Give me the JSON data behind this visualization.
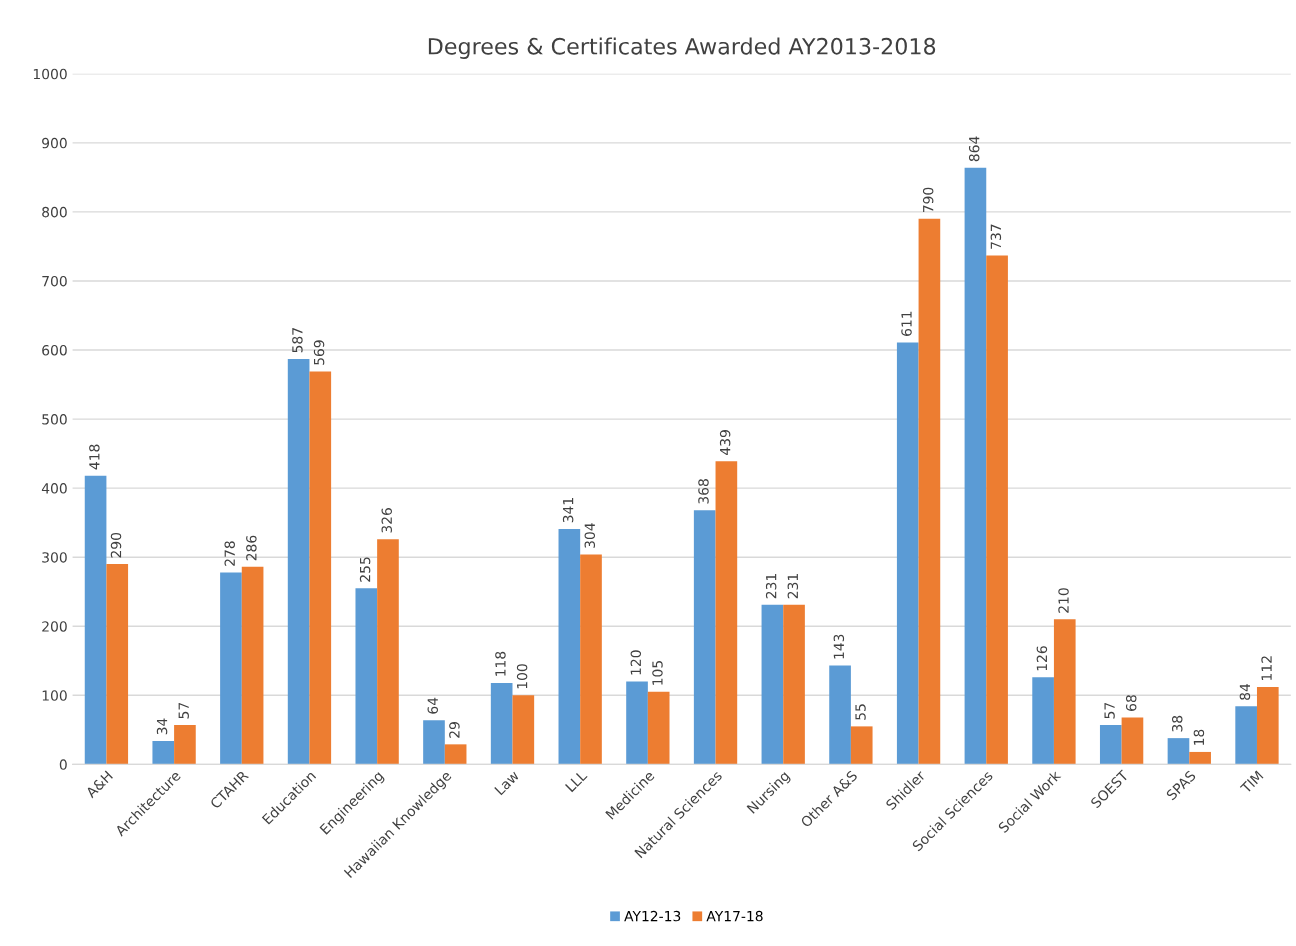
{
  "chart_data": {
    "type": "bar",
    "title": "Degrees & Certificates Awarded AY2013-2018",
    "categories": [
      "A&H",
      "Architecture",
      "CTAHR",
      "Education",
      "Engineering",
      "Hawaiian Knowledge",
      "Law",
      "LLL",
      "Medicine",
      "Natural Sciences",
      "Nursing",
      "Other A&S",
      "Shidler",
      "Social Sciences",
      "Social Work",
      "SOEST",
      "SPAS",
      "TIM"
    ],
    "series": [
      {
        "name": "AY12-13",
        "color": "#5b9bd5",
        "values": [
          418,
          34,
          278,
          587,
          255,
          64,
          118,
          341,
          120,
          368,
          231,
          143,
          611,
          864,
          126,
          57,
          38,
          84
        ]
      },
      {
        "name": "AY17-18",
        "color": "#ed7d31",
        "values": [
          290,
          57,
          286,
          569,
          326,
          29,
          100,
          304,
          105,
          439,
          231,
          55,
          790,
          737,
          210,
          68,
          18,
          112
        ]
      }
    ],
    "ylim": [
      0,
      1000
    ],
    "yticks": [
      0,
      100,
      200,
      300,
      400,
      500,
      600,
      700,
      800,
      900,
      1000
    ],
    "grid": "y",
    "legend": "bottom",
    "data_labels": true
  }
}
